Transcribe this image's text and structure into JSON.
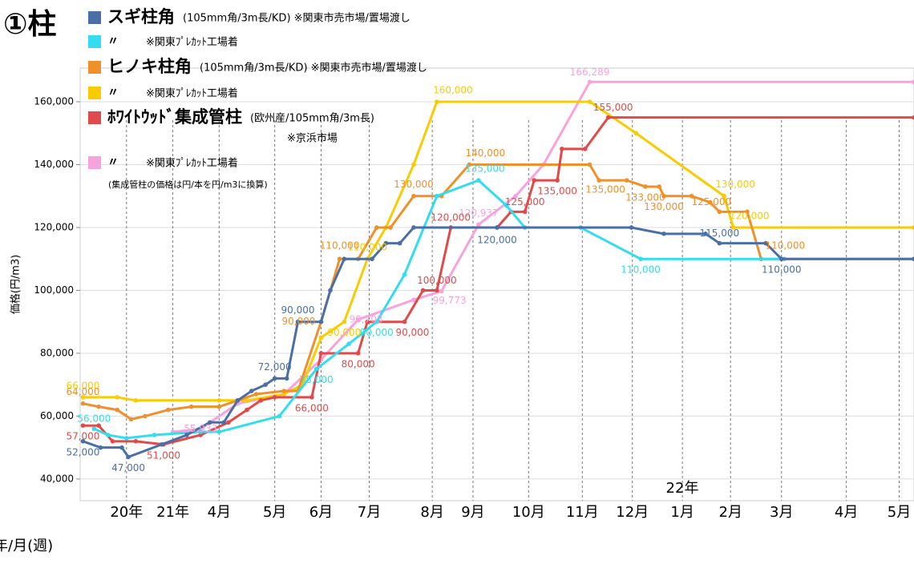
{
  "chart_data": {
    "type": "line",
    "title": "①柱",
    "y_label": "価格(円/m3)",
    "x_label": "年/月(週)",
    "annotations": [
      "22年",
      "※京浜市場",
      "(集成管柱の価格は円/本を円/m3に換算)"
    ],
    "xlim": [
      0,
      90
    ],
    "ylim": [
      33100,
      170700
    ],
    "grid": true,
    "yticks": [
      {
        "value": 40000,
        "label": "40,000"
      },
      {
        "value": 60000,
        "label": "60,000"
      },
      {
        "value": 80000,
        "label": "80,000"
      },
      {
        "value": 100000,
        "label": "100,000"
      },
      {
        "value": 120000,
        "label": "120,000"
      },
      {
        "value": 140000,
        "label": "140,000"
      },
      {
        "value": 160000,
        "label": "160,000"
      }
    ],
    "xticks": [
      {
        "value": 5,
        "label": "20年"
      },
      {
        "value": 10,
        "label": "21年"
      },
      {
        "value": 15,
        "label": "4月"
      },
      {
        "value": 21,
        "label": "5月"
      },
      {
        "value": 26,
        "label": "6月"
      },
      {
        "value": 31.2,
        "label": "7月"
      },
      {
        "value": 38,
        "label": "8月"
      },
      {
        "value": 42.4,
        "label": "9月"
      },
      {
        "value": 48.4,
        "label": "10月"
      },
      {
        "value": 54.2,
        "label": "11月"
      },
      {
        "value": 59.6,
        "label": "12月"
      },
      {
        "value": 65,
        "label": "1月"
      },
      {
        "value": 70.2,
        "label": "2月"
      },
      {
        "value": 75.7,
        "label": "3月"
      },
      {
        "value": 82.7,
        "label": "4月"
      },
      {
        "value": 88.4,
        "label": "5月"
      }
    ],
    "series": [
      {
        "name": "スギ柱角",
        "note": "(105mm角/3m長/KD) ※関東市売市場/置場渡し",
        "color": "#4a6fa5",
        "x": [
          0.3,
          2.2,
          4.5,
          5.2,
          8.8,
          11.5,
          14,
          15.5,
          17,
          18.5,
          20,
          21,
          22.3,
          23.5,
          26,
          27,
          28.5,
          31.5,
          33,
          34.5,
          36,
          45,
          59.5,
          63,
          67.5,
          69,
          74,
          75.7,
          90
        ],
        "values": [
          52000,
          50000,
          50000,
          47000,
          51000,
          54000,
          58000,
          58000,
          65000,
          68000,
          70000,
          72000,
          72000,
          90000,
          90000,
          100000,
          110000,
          110000,
          115000,
          115000,
          120000,
          120000,
          120000,
          118000,
          118000,
          115000,
          115000,
          110000,
          110000
        ],
        "value_labels": [
          "52,000",
          null,
          null,
          "47,000",
          null,
          null,
          null,
          null,
          null,
          null,
          null,
          "72,000",
          null,
          "90,000",
          null,
          null,
          null,
          null,
          null,
          null,
          null,
          "120,000",
          null,
          null,
          null,
          "115,000",
          null,
          "110,000",
          null
        ]
      },
      {
        "name": "〃",
        "note": "※関東ﾌﾟﾚｶｯﾄ工場着",
        "color": "#33ddf0",
        "x": [
          1.5,
          3,
          5,
          8,
          13,
          15,
          21.5,
          25.5,
          29,
          32,
          35,
          38.5,
          43,
          46,
          48,
          54,
          60.5,
          76
        ],
        "values": [
          56000,
          54000,
          53000,
          54000,
          55000,
          55000,
          60000,
          75000,
          83000,
          90000,
          105000,
          130000,
          135000,
          127000,
          120000,
          120000,
          110000,
          110000
        ],
        "value_labels": [
          "56,000",
          null,
          null,
          null,
          null,
          null,
          null,
          "75,000",
          null,
          "90,000",
          null,
          null,
          "135,000",
          null,
          null,
          null,
          "110,000",
          null
        ]
      },
      {
        "name": "ヒノキ柱角",
        "note": "(105mm角/3m長/KD) ※関東市売市場/置場渡し",
        "color": "#f0902a",
        "x": [
          0.3,
          2,
          4,
          5.5,
          7,
          9.5,
          12,
          15,
          17,
          19,
          22,
          23.5,
          26,
          28,
          30,
          32,
          33.5,
          36,
          39,
          42,
          55,
          56,
          59,
          61,
          62.5,
          63,
          66,
          68,
          69,
          72,
          73.5,
          90
        ],
        "values": [
          64000,
          63000,
          62000,
          59000,
          60000,
          62000,
          63000,
          63000,
          65000,
          67000,
          68000,
          68000,
          90000,
          110000,
          110000,
          120000,
          120000,
          130000,
          130000,
          140000,
          140000,
          135000,
          135000,
          133000,
          133000,
          130000,
          130000,
          128000,
          125000,
          125000,
          110000,
          110000
        ],
        "value_labels": [
          "64,000",
          null,
          null,
          null,
          null,
          null,
          null,
          null,
          null,
          null,
          null,
          null,
          "90,000",
          "110,000",
          null,
          null,
          null,
          "130,000",
          null,
          "140,000",
          null,
          "135,000",
          null,
          "133,000",
          null,
          "130,000",
          null,
          null,
          "125,000",
          null,
          "110,000",
          null
        ]
      },
      {
        "name": "〃",
        "note": "※関東ﾌﾟﾚｶｯﾄ工場着",
        "color": "#f8cc00",
        "x": [
          0.3,
          4,
          6,
          15,
          18,
          22,
          24,
          26,
          28.5,
          31,
          33,
          36,
          38.5,
          55,
          60,
          69.5,
          70.5,
          90
        ],
        "values": [
          66000,
          66000,
          65000,
          65000,
          65000,
          67000,
          70000,
          85000,
          90000,
          110000,
          120000,
          140000,
          160000,
          160000,
          150000,
          130000,
          120000,
          120000
        ],
        "value_labels": [
          "66,000",
          null,
          null,
          null,
          null,
          null,
          null,
          null,
          "90,000",
          "110,000",
          null,
          null,
          "160,000",
          null,
          null,
          "130,000",
          "120,000",
          null
        ]
      },
      {
        "name": "ﾎﾜｲﾄｳｯﾄﾞ集成管柱",
        "note": "(欧州産/105mm角/3m長)",
        "color": "#e04a4a",
        "x": [
          0.3,
          2,
          3.5,
          6,
          9,
          13,
          16,
          18,
          19.5,
          21,
          25,
          26,
          30,
          31,
          35,
          37,
          38.5,
          40,
          45,
          46.5,
          48,
          49,
          51.5,
          52,
          54.5,
          57,
          90
        ],
        "values": [
          57000,
          57000,
          52000,
          52000,
          51000,
          54000,
          58000,
          62000,
          65000,
          66000,
          66000,
          80000,
          80000,
          90000,
          90000,
          100000,
          100000,
          120000,
          120000,
          125000,
          125000,
          135000,
          135000,
          145000,
          145000,
          155000,
          155000
        ],
        "value_labels": [
          "57,000",
          null,
          null,
          null,
          "51,000",
          null,
          null,
          null,
          null,
          null,
          "66,000",
          null,
          "80,000",
          null,
          "90,000",
          null,
          "100,000",
          "120,000",
          null,
          null,
          "125,000",
          null,
          "135,000",
          null,
          null,
          "155,000",
          null
        ]
      },
      {
        "name": "〃",
        "note": "※関東ﾌﾟﾚｶｯﾄ工場着",
        "color": "#f7a3dd",
        "x": [
          10,
          13,
          17,
          22,
          26,
          30,
          36,
          39,
          43,
          47,
          50,
          55,
          90
        ],
        "values": [
          55000,
          55933,
          64000,
          67000,
          78000,
          90703,
          97000,
          99773,
          120937,
          130000,
          140000,
          166289,
          166289
        ],
        "value_labels": [
          null,
          "55,933",
          null,
          null,
          null,
          "90,703",
          null,
          "99,773",
          "120,937",
          null,
          null,
          "166,289",
          null
        ]
      }
    ]
  }
}
